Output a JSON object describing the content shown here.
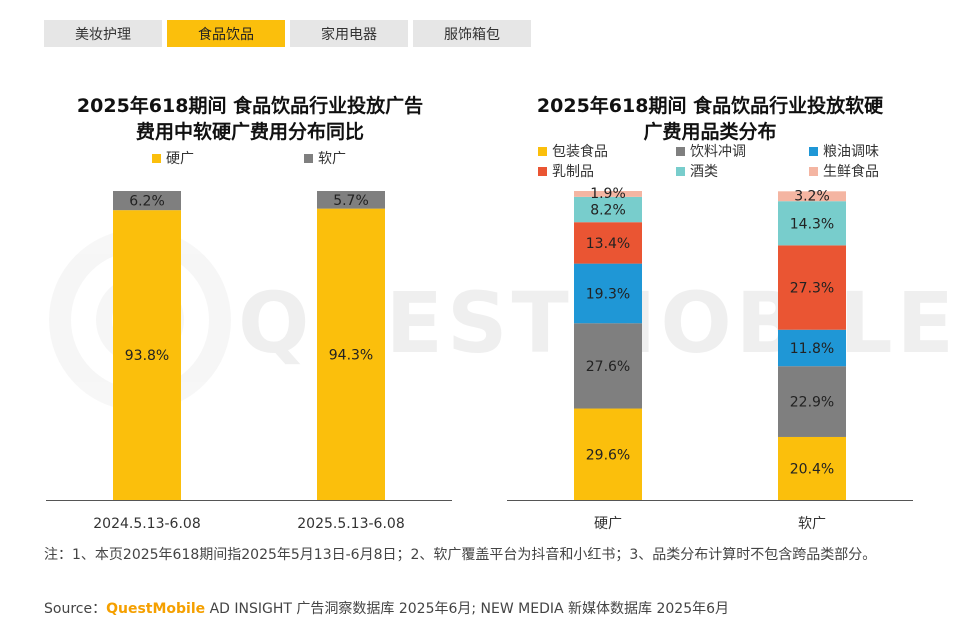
{
  "tabs": [
    {
      "label": "美妆护理",
      "active": false
    },
    {
      "label": "食品饮品",
      "active": true
    },
    {
      "label": "家用电器",
      "active": false
    },
    {
      "label": "服饰箱包",
      "active": false
    }
  ],
  "watermark": "QUESTMOBILE",
  "charts": {
    "left": {
      "title_line1": "2025年618期间 食品饮品行业投放广告",
      "title_line2": "费用中软硬广费用分布同比"
    },
    "right": {
      "title_line1": "2025年618期间 食品饮品行业投放软硬",
      "title_line2": "广费用品类分布"
    }
  },
  "chart_data": [
    {
      "type": "bar",
      "stacked": true,
      "categories": [
        "2024.5.13-6.08",
        "2025.5.13-6.08"
      ],
      "series": [
        {
          "name": "硬广",
          "values": [
            93.8,
            94.3
          ],
          "labels": [
            "93.8%",
            "94.3%"
          ],
          "color": "#fbbf0c"
        },
        {
          "name": "软广",
          "values": [
            6.2,
            5.7
          ],
          "labels": [
            "6.2%",
            "5.7%"
          ],
          "color": "#7f7f7f"
        }
      ],
      "ylim": [
        0,
        100
      ],
      "legend_position": "top"
    },
    {
      "type": "bar",
      "stacked": true,
      "categories": [
        "硬广",
        "软广"
      ],
      "series": [
        {
          "name": "包装食品",
          "values": [
            29.6,
            20.4
          ],
          "labels": [
            "29.6%",
            "20.4%"
          ],
          "color": "#fbbf0c"
        },
        {
          "name": "饮料冲调",
          "values": [
            27.6,
            22.9
          ],
          "labels": [
            "27.6%",
            "22.9%"
          ],
          "color": "#7f7f7f"
        },
        {
          "name": "粮油调味",
          "values": [
            19.3,
            11.8
          ],
          "labels": [
            "19.3%",
            "11.8%"
          ],
          "color": "#1f97d6"
        },
        {
          "name": "乳制品",
          "values": [
            13.4,
            27.3
          ],
          "labels": [
            "13.4%",
            "27.3%"
          ],
          "color": "#ea5533"
        },
        {
          "name": "酒类",
          "values": [
            8.2,
            14.3
          ],
          "labels": [
            "8.2%",
            "14.3%"
          ],
          "color": "#78cdcc"
        },
        {
          "name": "生鲜食品",
          "values": [
            1.9,
            3.2
          ],
          "labels": [
            "1.9%",
            "3.2%"
          ],
          "color": "#f4b5a2"
        }
      ],
      "ylim": [
        0,
        100
      ],
      "legend_position": "top"
    }
  ],
  "note": "注：1、本页2025年618期间指2025年5月13日-6月8日；2、软广覆盖平台为抖音和小红书；3、品类分布计算时不包含跨品类部分。",
  "source": {
    "prefix": "Source：",
    "brand": "QuestMobile",
    "rest": " AD INSIGHT 广告洞察数据库 2025年6月; NEW MEDIA 新媒体数据库 2025年6月"
  }
}
